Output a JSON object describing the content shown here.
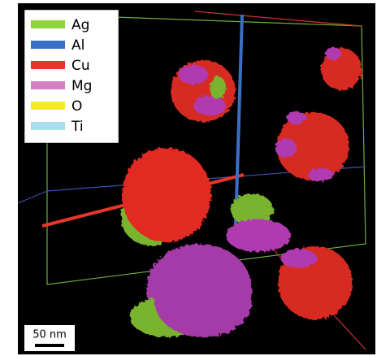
{
  "legend": {
    "items": [
      {
        "name": "Ag",
        "color": "#8ed43a"
      },
      {
        "name": "Al",
        "color": "#3a6fc9"
      },
      {
        "name": "Cu",
        "color": "#e8352a"
      },
      {
        "name": "Mg",
        "color": "#d57fc2"
      },
      {
        "name": "O",
        "color": "#f2ea2a"
      },
      {
        "name": "Ti",
        "color": "#a9dcef"
      }
    ]
  },
  "scale_bar": {
    "label": "50 nm"
  }
}
